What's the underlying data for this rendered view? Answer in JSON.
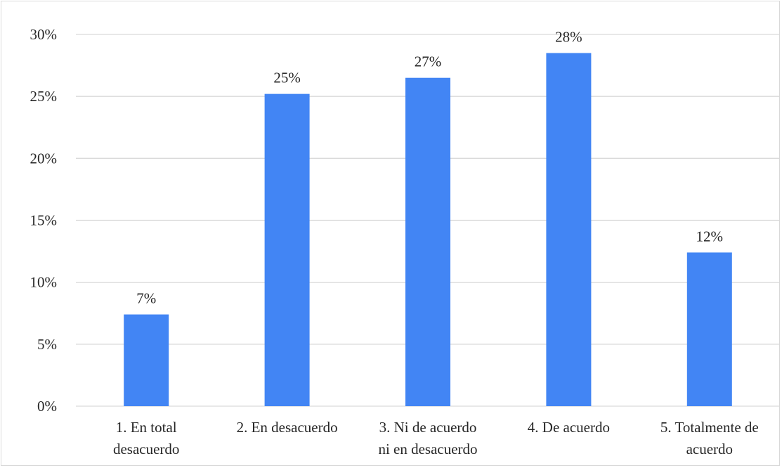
{
  "chart_data": {
    "type": "bar",
    "categories": [
      [
        "1. En total",
        "desacuerdo"
      ],
      [
        "2. En desacuerdo"
      ],
      [
        "3. Ni de acuerdo",
        "ni en desacuerdo"
      ],
      [
        "4. De acuerdo"
      ],
      [
        "5. Totalmente de",
        "acuerdo"
      ]
    ],
    "values": [
      7.4,
      25.2,
      26.5,
      28.5,
      12.4
    ],
    "data_labels": [
      "7%",
      "25%",
      "27%",
      "28%",
      "12%"
    ],
    "yticks": [
      "0%",
      "5%",
      "10%",
      "15%",
      "20%",
      "25%",
      "30%"
    ],
    "ylim": [
      0,
      30
    ],
    "grid": true,
    "colors": {
      "bar": "#4285f4",
      "grid": "#d9d9d9",
      "text": "#262626"
    }
  }
}
